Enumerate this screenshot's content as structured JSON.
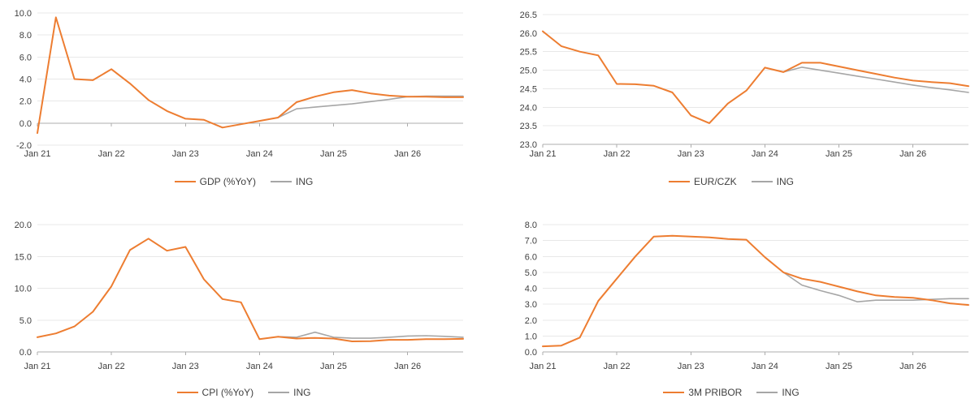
{
  "styles": {
    "background": "#FFFFFF",
    "grid_color": "#E8E8E8",
    "axis_color": "#ACACAC",
    "text_color": "#404040",
    "series_orange": "#ED7D31",
    "series_gray": "#A6A6A6"
  },
  "chart_data": [
    {
      "type": "line",
      "title": "",
      "frequency": "quarterly",
      "x_tick_labels": [
        "Jan 21",
        "Jan 22",
        "Jan 23",
        "Jan 24",
        "Jan 25",
        "Jan 26"
      ],
      "ylim": [
        -2,
        10
      ],
      "ytick_values": [
        10,
        8,
        6,
        4,
        2,
        0,
        -2
      ],
      "ytick_labels": [
        "10.0",
        "8.0",
        "6.0",
        "4.0",
        "2.0",
        "0.0",
        "-2.0"
      ],
      "grid": true,
      "legend_position": "bottom",
      "series": [
        {
          "name": "GDP (%YoY)",
          "color": "#ED7D31",
          "values": [
            -0.9,
            9.6,
            4.0,
            3.9,
            4.9,
            3.6,
            2.1,
            1.1,
            0.4,
            0.3,
            -0.4,
            -0.1,
            0.2,
            0.5,
            1.9,
            2.4,
            2.8,
            3.0,
            2.7,
            2.5,
            2.4,
            2.4,
            2.35,
            2.35
          ]
        },
        {
          "name": "ING",
          "color": "#A6A6A6",
          "values": [
            null,
            null,
            null,
            null,
            null,
            null,
            null,
            null,
            null,
            null,
            null,
            null,
            null,
            0.5,
            1.3,
            1.45,
            1.6,
            1.75,
            1.95,
            2.15,
            2.4,
            2.45,
            2.45,
            2.45
          ]
        }
      ]
    },
    {
      "type": "line",
      "title": "",
      "frequency": "quarterly",
      "x_tick_labels": [
        "Jan 21",
        "Jan 22",
        "Jan 23",
        "Jan 24",
        "Jan 25",
        "Jan 26"
      ],
      "ylim": [
        23.0,
        26.5
      ],
      "ytick_values": [
        26.5,
        26.0,
        25.5,
        25.0,
        24.5,
        24.0,
        23.5,
        23.0
      ],
      "ytick_labels": [
        "26.5",
        "26.0",
        "25.5",
        "25.0",
        "24.5",
        "24.0",
        "23.5",
        "23.0"
      ],
      "grid": true,
      "legend_position": "bottom",
      "series": [
        {
          "name": "EUR/CZK",
          "color": "#ED7D31",
          "values": [
            26.05,
            25.65,
            25.5,
            25.4,
            24.63,
            24.62,
            24.58,
            24.4,
            23.78,
            23.57,
            24.1,
            24.45,
            25.07,
            24.95,
            25.2,
            25.2,
            25.1,
            25.0,
            24.9,
            24.8,
            24.72,
            24.68,
            24.65,
            24.57
          ]
        },
        {
          "name": "ING",
          "color": "#A6A6A6",
          "values": [
            null,
            null,
            null,
            null,
            null,
            null,
            null,
            null,
            null,
            null,
            null,
            null,
            null,
            24.95,
            25.08,
            25.0,
            24.92,
            24.84,
            24.76,
            24.68,
            24.6,
            24.53,
            24.47,
            24.4
          ]
        }
      ]
    },
    {
      "type": "line",
      "title": "",
      "frequency": "quarterly",
      "x_tick_labels": [
        "Jan 21",
        "Jan 22",
        "Jan 23",
        "Jan 24",
        "Jan 25",
        "Jan 26"
      ],
      "ylim": [
        0,
        20
      ],
      "ytick_values": [
        20,
        15,
        10,
        5,
        0
      ],
      "ytick_labels": [
        "20.0",
        "15.0",
        "10.0",
        "5.0",
        "0.0"
      ],
      "grid": true,
      "legend_position": "bottom",
      "series": [
        {
          "name": "CPI (%YoY)",
          "color": "#ED7D31",
          "values": [
            2.3,
            2.9,
            4.0,
            6.3,
            10.3,
            16.0,
            17.8,
            15.9,
            16.5,
            11.4,
            8.3,
            7.8,
            2.0,
            2.4,
            2.1,
            2.2,
            2.1,
            1.65,
            1.7,
            1.9,
            1.9,
            2.0,
            2.0,
            2.05
          ]
        },
        {
          "name": "ING",
          "color": "#A6A6A6",
          "values": [
            null,
            null,
            null,
            null,
            null,
            null,
            null,
            null,
            null,
            null,
            null,
            null,
            null,
            2.4,
            2.3,
            3.1,
            2.3,
            2.15,
            2.15,
            2.3,
            2.5,
            2.55,
            2.45,
            2.3
          ]
        }
      ]
    },
    {
      "type": "line",
      "title": "",
      "frequency": "quarterly",
      "x_tick_labels": [
        "Jan 21",
        "Jan 22",
        "Jan 23",
        "Jan 24",
        "Jan 25",
        "Jan 26"
      ],
      "ylim": [
        0,
        8
      ],
      "ytick_values": [
        8,
        7,
        6,
        5,
        4,
        3,
        2,
        1,
        0
      ],
      "ytick_labels": [
        "8.0",
        "7.0",
        "6.0",
        "5.0",
        "4.0",
        "3.0",
        "2.0",
        "1.0",
        "0.0"
      ],
      "grid": true,
      "legend_position": "bottom",
      "series": [
        {
          "name": "3M PRIBOR",
          "color": "#ED7D31",
          "values": [
            0.35,
            0.4,
            0.9,
            3.2,
            4.6,
            6.0,
            7.25,
            7.3,
            7.25,
            7.2,
            7.1,
            7.05,
            5.95,
            5.0,
            4.6,
            4.4,
            4.1,
            3.8,
            3.55,
            3.45,
            3.4,
            3.25,
            3.05,
            2.95
          ]
        },
        {
          "name": "ING",
          "color": "#A6A6A6",
          "values": [
            null,
            null,
            null,
            null,
            null,
            null,
            null,
            null,
            null,
            null,
            null,
            null,
            null,
            5.0,
            4.2,
            3.85,
            3.55,
            3.15,
            3.25,
            3.25,
            3.25,
            3.3,
            3.35,
            3.35
          ]
        }
      ]
    }
  ]
}
